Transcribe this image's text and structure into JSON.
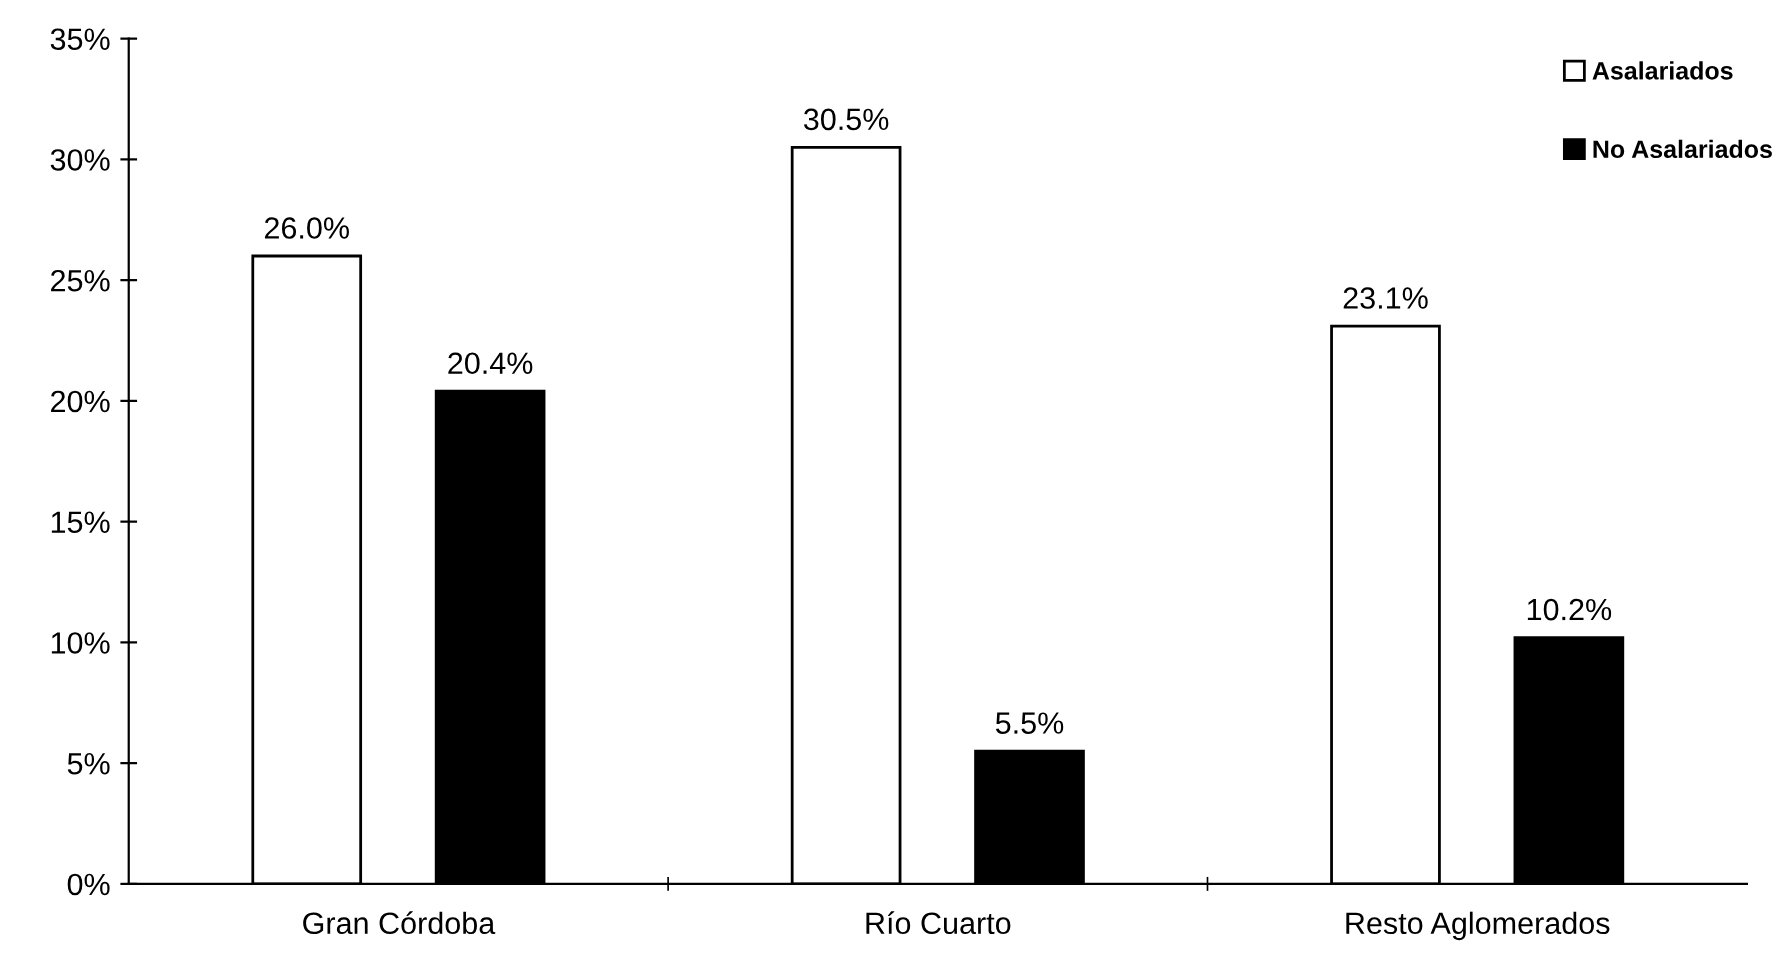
{
  "chart_data": {
    "type": "bar",
    "categories": [
      "Gran Córdoba",
      "Río Cuarto",
      "Resto Aglomerados"
    ],
    "series": [
      {
        "name": "Asalariados",
        "color": "#ffffff",
        "values": [
          26.0,
          30.5,
          23.1
        ],
        "value_labels": [
          "26.0%",
          "30.5%",
          "23.1%"
        ]
      },
      {
        "name": "No Asalariados",
        "color": "#000000",
        "values": [
          20.4,
          5.5,
          10.2
        ],
        "value_labels": [
          "20.4%",
          "5.5%",
          "10.2%"
        ]
      }
    ],
    "ylim": [
      0,
      35
    ],
    "yticks": [
      {
        "value": 0,
        "label": "0%"
      },
      {
        "value": 5,
        "label": "5%"
      },
      {
        "value": 10,
        "label": "10%"
      },
      {
        "value": 15,
        "label": "15%"
      },
      {
        "value": 20,
        "label": "20%"
      },
      {
        "value": 25,
        "label": "25%"
      },
      {
        "value": 30,
        "label": "30%"
      },
      {
        "value": 35,
        "label": "35%"
      }
    ],
    "grid": false,
    "legend": "top right"
  }
}
